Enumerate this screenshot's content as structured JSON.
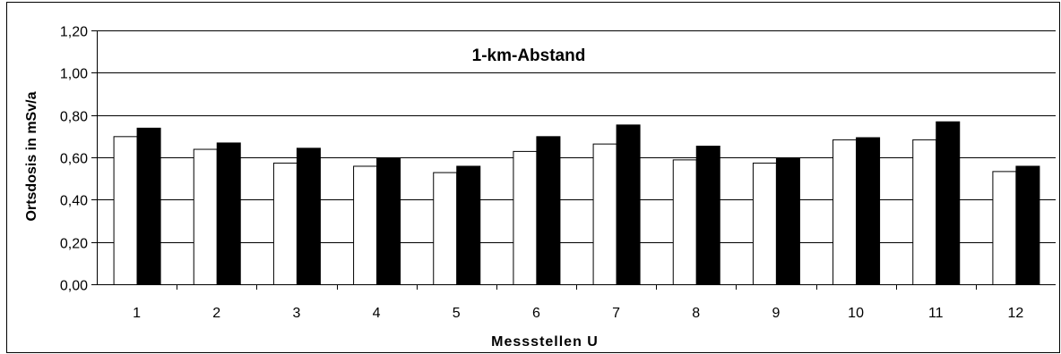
{
  "chart_data": {
    "type": "bar",
    "title": "1-km-Abstand",
    "xlabel": "Messstellen U",
    "ylabel": "Ortsdosis in mSv/a",
    "ylim": [
      0,
      1.2
    ],
    "yticks": [
      "0,00",
      "0,20",
      "0,40",
      "0,60",
      "0,80",
      "1,00",
      "1,20"
    ],
    "grid": true,
    "legend": "none",
    "categories": [
      "1",
      "2",
      "3",
      "4",
      "5",
      "6",
      "7",
      "8",
      "9",
      "10",
      "11",
      "12"
    ],
    "series": [
      {
        "color": "#ffffff",
        "values": [
          0.7,
          0.64,
          0.575,
          0.56,
          0.53,
          0.63,
          0.665,
          0.59,
          0.575,
          0.685,
          0.685,
          0.535
        ]
      },
      {
        "color": "#000000",
        "values": [
          0.74,
          0.67,
          0.645,
          0.6,
          0.56,
          0.7,
          0.755,
          0.655,
          0.6,
          0.695,
          0.77,
          0.56
        ]
      }
    ]
  }
}
